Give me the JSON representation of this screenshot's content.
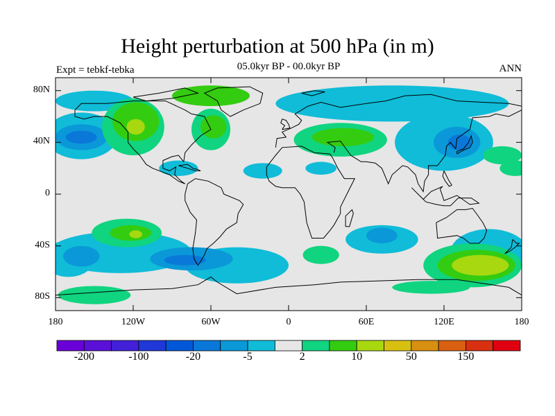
{
  "title": "Height perturbation at 500 hPa (in m)",
  "subtitle": "05.0kyr BP - 00.0kyr BP",
  "left_label": "Expt = tebkf-tebka",
  "right_label": "ANN",
  "lat_ticks": [
    {
      "value": 80,
      "label": "80N"
    },
    {
      "value": 40,
      "label": "40N"
    },
    {
      "value": 0,
      "label": "0"
    },
    {
      "value": -40,
      "label": "40S"
    },
    {
      "value": -80,
      "label": "80S"
    }
  ],
  "lon_ticks": [
    {
      "value": -180,
      "label": "180"
    },
    {
      "value": -120,
      "label": "120W"
    },
    {
      "value": -60,
      "label": "60W"
    },
    {
      "value": 0,
      "label": "0"
    },
    {
      "value": 60,
      "label": "60E"
    },
    {
      "value": 120,
      "label": "120E"
    },
    {
      "value": 180,
      "label": "180"
    }
  ],
  "colorbar": {
    "colors": [
      "#6a00d8",
      "#5a10d8",
      "#4220d8",
      "#2038d8",
      "#0058d8",
      "#0a78d8",
      "#0a98d8",
      "#10bcd8",
      "#e6e6e6",
      "#10d480",
      "#34cc10",
      "#a8d810",
      "#d8c010",
      "#d89010",
      "#d86010",
      "#d83010",
      "#e00010"
    ],
    "labels": [
      {
        "boundary": 1,
        "text": "-200"
      },
      {
        "boundary": 3,
        "text": "-100"
      },
      {
        "boundary": 5,
        "text": "-20"
      },
      {
        "boundary": 7,
        "text": "-5"
      },
      {
        "boundary": 9,
        "text": "2"
      },
      {
        "boundary": 11,
        "text": "10"
      },
      {
        "boundary": 13,
        "text": "50"
      },
      {
        "boundary": 15,
        "text": "150"
      }
    ]
  },
  "map_colors": {
    "background": "#e6e6e6",
    "light_blue": "#10bcd8",
    "mid_blue": "#0a98d8",
    "dark_blue": "#0a78d8",
    "light_green": "#10d480",
    "green": "#34cc10",
    "yellow_green": "#a8d810",
    "coastline": "#000000"
  },
  "chart_data": {
    "type": "heatmap",
    "title": "Height perturbation at 500 hPa (in m)",
    "subtitle": "05.0kyr BP - 00.0kyr BP",
    "experiment": "Expt = tebkf-tebka",
    "season": "ANN",
    "xlim": [
      -180,
      180
    ],
    "ylim": [
      -90,
      90
    ],
    "units": "m",
    "level_labels": [
      -200,
      -100,
      -20,
      -5,
      2,
      10,
      50,
      150
    ],
    "features": [
      {
        "lon": 145,
        "lat": -55,
        "value": 10,
        "region": "Southern Ocean south of Australia"
      },
      {
        "lon": -120,
        "lat": 50,
        "value": 10,
        "region": "Western North America"
      },
      {
        "lon": -118,
        "lat": -30,
        "value": 10,
        "region": "South-east Pacific"
      },
      {
        "lon": -158,
        "lat": 45,
        "value": -5,
        "region": "North Pacific"
      },
      {
        "lon": -75,
        "lat": -50,
        "value": -5,
        "region": "South of South America"
      },
      {
        "lon": 130,
        "lat": 40,
        "value": -5,
        "region": "East Asia"
      },
      {
        "lon": 40,
        "lat": 45,
        "value": 2,
        "region": "Europe / Western Asia"
      }
    ]
  }
}
